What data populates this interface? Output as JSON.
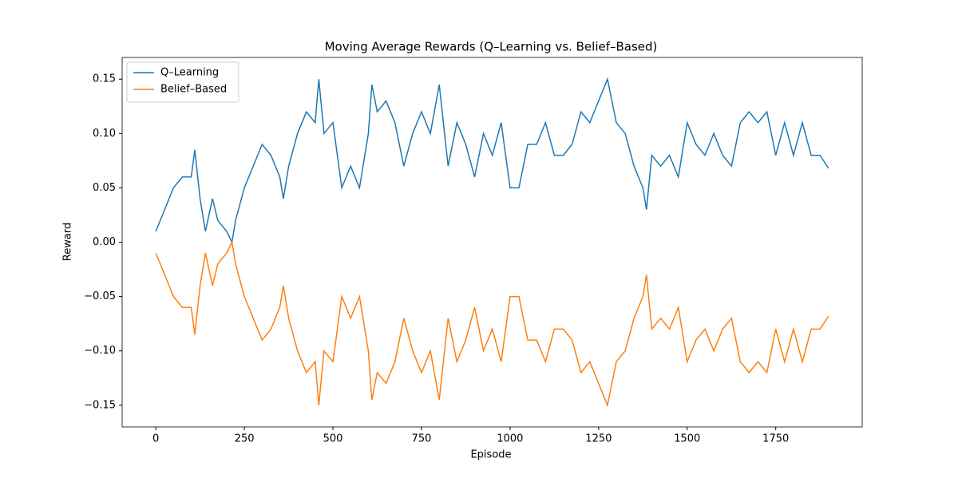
{
  "chart_data": {
    "type": "line",
    "title": "Moving Average Rewards (Q–Learning vs. Belief–Based)",
    "x_label": "Episode",
    "y_label": "Reward",
    "x": [
      0,
      25,
      50,
      75,
      100,
      110,
      125,
      140,
      160,
      175,
      200,
      215,
      225,
      250,
      275,
      300,
      325,
      350,
      360,
      375,
      400,
      425,
      450,
      460,
      475,
      500,
      525,
      550,
      575,
      600,
      610,
      625,
      650,
      675,
      700,
      725,
      750,
      775,
      800,
      825,
      850,
      875,
      900,
      925,
      950,
      975,
      1000,
      1025,
      1050,
      1075,
      1100,
      1125,
      1150,
      1175,
      1200,
      1225,
      1250,
      1275,
      1300,
      1325,
      1350,
      1375,
      1385,
      1400,
      1425,
      1450,
      1475,
      1500,
      1525,
      1550,
      1575,
      1600,
      1625,
      1650,
      1675,
      1700,
      1725,
      1750,
      1775,
      1800,
      1825,
      1850,
      1875,
      1899
    ],
    "series": [
      {
        "name": "Q–Learning",
        "color": "#1f77b4",
        "values": [
          0.01,
          0.03,
          0.05,
          0.06,
          0.06,
          0.085,
          0.04,
          0.01,
          0.04,
          0.02,
          0.01,
          0.0,
          0.02,
          0.05,
          0.07,
          0.09,
          0.08,
          0.06,
          0.04,
          0.07,
          0.1,
          0.12,
          0.11,
          0.15,
          0.1,
          0.11,
          0.05,
          0.07,
          0.05,
          0.1,
          0.145,
          0.12,
          0.13,
          0.11,
          0.07,
          0.1,
          0.12,
          0.1,
          0.145,
          0.07,
          0.11,
          0.09,
          0.06,
          0.1,
          0.08,
          0.11,
          0.05,
          0.05,
          0.09,
          0.09,
          0.11,
          0.08,
          0.08,
          0.09,
          0.12,
          0.11,
          0.13,
          0.15,
          0.11,
          0.1,
          0.07,
          0.05,
          0.03,
          0.08,
          0.07,
          0.08,
          0.06,
          0.11,
          0.09,
          0.08,
          0.1,
          0.08,
          0.07,
          0.11,
          0.12,
          0.11,
          0.12,
          0.08,
          0.11,
          0.08,
          0.11,
          0.08,
          0.08,
          0.068
        ]
      },
      {
        "name": "Belief–Based",
        "color": "#ff7f0e",
        "values": [
          -0.01,
          -0.03,
          -0.05,
          -0.06,
          -0.06,
          -0.085,
          -0.04,
          -0.01,
          -0.04,
          -0.02,
          -0.01,
          0.0,
          -0.02,
          -0.05,
          -0.07,
          -0.09,
          -0.08,
          -0.06,
          -0.04,
          -0.07,
          -0.1,
          -0.12,
          -0.11,
          -0.15,
          -0.1,
          -0.11,
          -0.05,
          -0.07,
          -0.05,
          -0.1,
          -0.145,
          -0.12,
          -0.13,
          -0.11,
          -0.07,
          -0.1,
          -0.12,
          -0.1,
          -0.145,
          -0.07,
          -0.11,
          -0.09,
          -0.06,
          -0.1,
          -0.08,
          -0.11,
          -0.05,
          -0.05,
          -0.09,
          -0.09,
          -0.11,
          -0.08,
          -0.08,
          -0.09,
          -0.12,
          -0.11,
          -0.13,
          -0.15,
          -0.11,
          -0.1,
          -0.07,
          -0.05,
          -0.03,
          -0.08,
          -0.07,
          -0.08,
          -0.06,
          -0.11,
          -0.09,
          -0.08,
          -0.1,
          -0.08,
          -0.07,
          -0.11,
          -0.12,
          -0.11,
          -0.12,
          -0.08,
          -0.11,
          -0.08,
          -0.11,
          -0.08,
          -0.08,
          -0.068
        ]
      }
    ],
    "xlim": [
      -95,
      1994
    ],
    "ylim": [
      -0.17,
      0.17
    ],
    "xticks": [
      0,
      250,
      500,
      750,
      1000,
      1250,
      1500,
      1750
    ],
    "yticks": [
      {
        "value": -0.15,
        "label": "−0.15"
      },
      {
        "value": -0.1,
        "label": "−0.10"
      },
      {
        "value": -0.05,
        "label": "−0.05"
      },
      {
        "value": 0,
        "label": "0.00"
      },
      0.05,
      {
        "value": 0.1,
        "label": "0.10"
      },
      0.15
    ],
    "legend": "upper left"
  }
}
